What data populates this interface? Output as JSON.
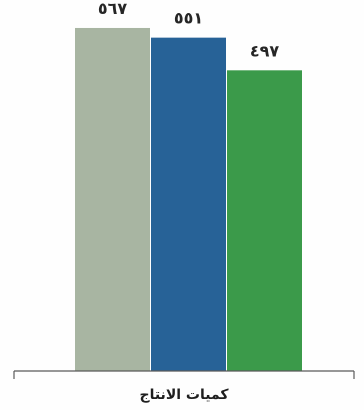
{
  "chart_data": {
    "type": "bar",
    "categories": [
      "كميات الانتاج"
    ],
    "series": [
      {
        "values": [
          567
        ],
        "label": "٥٦٧",
        "color": "#a8b5a2"
      },
      {
        "values": [
          551
        ],
        "label": "٥٥١",
        "color": "#276297"
      },
      {
        "values": [
          497
        ],
        "label": "٤٩٧",
        "color": "#3b9a4a"
      }
    ],
    "title": "",
    "xlabel": "كميات الانتاج",
    "ylabel": "",
    "ylim": [
      0,
      600
    ],
    "grid": false,
    "legend": "none"
  }
}
